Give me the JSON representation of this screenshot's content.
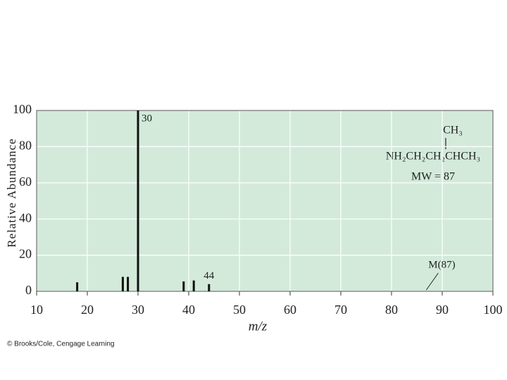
{
  "chart_data": {
    "type": "spectrum",
    "x_label": "m/z",
    "y_label": "Relative Abundance",
    "x": [
      18,
      27,
      28,
      30,
      39,
      41,
      44
    ],
    "values": [
      5,
      8,
      8,
      100,
      5.5,
      6,
      4
    ],
    "color": "#111111",
    "background": "#d3eadb",
    "xlim": [
      10,
      100
    ],
    "xticks": [
      10,
      20,
      30,
      40,
      50,
      60,
      70,
      80,
      90,
      100
    ],
    "ylim": [
      0,
      100
    ],
    "yticks": [
      0,
      20,
      40,
      60,
      80,
      100
    ],
    "grid": true,
    "annotations": [
      {
        "text": "30",
        "x": 30,
        "y": 100
      },
      {
        "text": "44",
        "x": 44,
        "y": 4
      },
      {
        "text": "M(87)",
        "x": 87,
        "y": 0
      }
    ],
    "structure": [
      "CH₃",
      "NH₂CH₂CH₂CHCH₃",
      "MW = 87"
    ],
    "credit": "© Brooks/Cole, Cengage Learning"
  }
}
